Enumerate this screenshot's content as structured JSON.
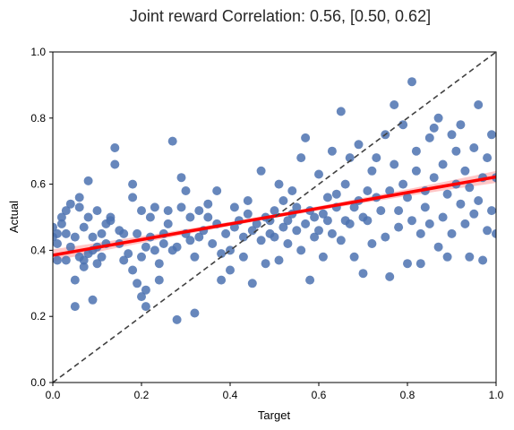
{
  "chart_data": {
    "type": "scatter",
    "title": "Joint reward Correlation: 0.56, [0.50, 0.62]",
    "xlabel": "Target",
    "ylabel": "Actual",
    "xlim": [
      0.0,
      1.0
    ],
    "ylim": [
      0.0,
      1.0
    ],
    "x_ticks": [
      "0.0",
      "0.2",
      "0.4",
      "0.6",
      "0.8",
      "1.0"
    ],
    "y_ticks": [
      "0.0",
      "0.2",
      "0.4",
      "0.6",
      "0.8",
      "1.0"
    ],
    "grid": false,
    "legend": "none",
    "colors": {
      "points": "#4c72b0",
      "regression": "#ff0000",
      "confidence_band": "#ff9999",
      "identity": "#404040"
    },
    "regression": {
      "intercept": 0.385,
      "slope": 0.237,
      "x_range": [
        0.0,
        1.0
      ]
    },
    "identity_line": {
      "x": [
        0.0,
        1.0
      ],
      "y": [
        0.0,
        1.0
      ],
      "style": "dashed"
    },
    "points": [
      [
        0.0,
        0.44
      ],
      [
        0.0,
        0.47
      ],
      [
        0.01,
        0.45
      ],
      [
        0.01,
        0.37
      ],
      [
        0.01,
        0.42
      ],
      [
        0.02,
        0.48
      ],
      [
        0.02,
        0.5
      ],
      [
        0.03,
        0.37
      ],
      [
        0.03,
        0.52
      ],
      [
        0.03,
        0.45
      ],
      [
        0.04,
        0.41
      ],
      [
        0.04,
        0.54
      ],
      [
        0.05,
        0.23
      ],
      [
        0.05,
        0.31
      ],
      [
        0.05,
        0.44
      ],
      [
        0.06,
        0.56
      ],
      [
        0.06,
        0.38
      ],
      [
        0.06,
        0.53
      ],
      [
        0.07,
        0.35
      ],
      [
        0.07,
        0.37
      ],
      [
        0.07,
        0.47
      ],
      [
        0.08,
        0.39
      ],
      [
        0.08,
        0.61
      ],
      [
        0.08,
        0.5
      ],
      [
        0.09,
        0.25
      ],
      [
        0.09,
        0.44
      ],
      [
        0.09,
        0.4
      ],
      [
        0.1,
        0.41
      ],
      [
        0.1,
        0.36
      ],
      [
        0.1,
        0.52
      ],
      [
        0.11,
        0.38
      ],
      [
        0.11,
        0.45
      ],
      [
        0.12,
        0.48
      ],
      [
        0.12,
        0.42
      ],
      [
        0.13,
        0.49
      ],
      [
        0.13,
        0.5
      ],
      [
        0.14,
        0.66
      ],
      [
        0.14,
        0.71
      ],
      [
        0.15,
        0.46
      ],
      [
        0.15,
        0.42
      ],
      [
        0.16,
        0.37
      ],
      [
        0.16,
        0.45
      ],
      [
        0.17,
        0.39
      ],
      [
        0.18,
        0.56
      ],
      [
        0.18,
        0.6
      ],
      [
        0.18,
        0.34
      ],
      [
        0.19,
        0.45
      ],
      [
        0.19,
        0.3
      ],
      [
        0.2,
        0.52
      ],
      [
        0.2,
        0.38
      ],
      [
        0.2,
        0.26
      ],
      [
        0.21,
        0.28
      ],
      [
        0.21,
        0.41
      ],
      [
        0.21,
        0.23
      ],
      [
        0.22,
        0.44
      ],
      [
        0.22,
        0.5
      ],
      [
        0.23,
        0.4
      ],
      [
        0.23,
        0.53
      ],
      [
        0.24,
        0.31
      ],
      [
        0.24,
        0.36
      ],
      [
        0.25,
        0.45
      ],
      [
        0.25,
        0.42
      ],
      [
        0.26,
        0.48
      ],
      [
        0.26,
        0.52
      ],
      [
        0.27,
        0.4
      ],
      [
        0.27,
        0.73
      ],
      [
        0.28,
        0.19
      ],
      [
        0.28,
        0.41
      ],
      [
        0.29,
        0.53
      ],
      [
        0.29,
        0.62
      ],
      [
        0.3,
        0.45
      ],
      [
        0.3,
        0.58
      ],
      [
        0.31,
        0.43
      ],
      [
        0.31,
        0.5
      ],
      [
        0.32,
        0.38
      ],
      [
        0.32,
        0.21
      ],
      [
        0.33,
        0.52
      ],
      [
        0.33,
        0.44
      ],
      [
        0.34,
        0.46
      ],
      [
        0.35,
        0.5
      ],
      [
        0.35,
        0.54
      ],
      [
        0.36,
        0.42
      ],
      [
        0.37,
        0.58
      ],
      [
        0.37,
        0.48
      ],
      [
        0.38,
        0.39
      ],
      [
        0.38,
        0.31
      ],
      [
        0.39,
        0.45
      ],
      [
        0.4,
        0.4
      ],
      [
        0.4,
        0.34
      ],
      [
        0.41,
        0.53
      ],
      [
        0.41,
        0.47
      ],
      [
        0.42,
        0.49
      ],
      [
        0.43,
        0.44
      ],
      [
        0.43,
        0.38
      ],
      [
        0.44,
        0.51
      ],
      [
        0.44,
        0.55
      ],
      [
        0.45,
        0.46
      ],
      [
        0.45,
        0.3
      ],
      [
        0.46,
        0.48
      ],
      [
        0.47,
        0.43
      ],
      [
        0.47,
        0.64
      ],
      [
        0.48,
        0.5
      ],
      [
        0.48,
        0.36
      ],
      [
        0.49,
        0.45
      ],
      [
        0.49,
        0.49
      ],
      [
        0.5,
        0.52
      ],
      [
        0.5,
        0.44
      ],
      [
        0.51,
        0.6
      ],
      [
        0.51,
        0.37
      ],
      [
        0.52,
        0.55
      ],
      [
        0.52,
        0.47
      ],
      [
        0.53,
        0.49
      ],
      [
        0.53,
        0.42
      ],
      [
        0.54,
        0.51
      ],
      [
        0.54,
        0.58
      ],
      [
        0.55,
        0.46
      ],
      [
        0.55,
        0.53
      ],
      [
        0.56,
        0.68
      ],
      [
        0.56,
        0.4
      ],
      [
        0.57,
        0.48
      ],
      [
        0.57,
        0.74
      ],
      [
        0.58,
        0.52
      ],
      [
        0.58,
        0.31
      ],
      [
        0.59,
        0.44
      ],
      [
        0.59,
        0.5
      ],
      [
        0.6,
        0.63
      ],
      [
        0.6,
        0.46
      ],
      [
        0.61,
        0.51
      ],
      [
        0.61,
        0.38
      ],
      [
        0.62,
        0.56
      ],
      [
        0.62,
        0.49
      ],
      [
        0.63,
        0.45
      ],
      [
        0.63,
        0.7
      ],
      [
        0.64,
        0.53
      ],
      [
        0.64,
        0.57
      ],
      [
        0.65,
        0.82
      ],
      [
        0.65,
        0.43
      ],
      [
        0.66,
        0.49
      ],
      [
        0.66,
        0.6
      ],
      [
        0.67,
        0.48
      ],
      [
        0.67,
        0.68
      ],
      [
        0.68,
        0.53
      ],
      [
        0.68,
        0.38
      ],
      [
        0.69,
        0.72
      ],
      [
        0.69,
        0.55
      ],
      [
        0.7,
        0.5
      ],
      [
        0.7,
        0.33
      ],
      [
        0.71,
        0.58
      ],
      [
        0.71,
        0.49
      ],
      [
        0.72,
        0.64
      ],
      [
        0.72,
        0.42
      ],
      [
        0.73,
        0.56
      ],
      [
        0.73,
        0.68
      ],
      [
        0.74,
        0.52
      ],
      [
        0.75,
        0.75
      ],
      [
        0.75,
        0.44
      ],
      [
        0.76,
        0.58
      ],
      [
        0.76,
        0.32
      ],
      [
        0.77,
        0.66
      ],
      [
        0.77,
        0.84
      ],
      [
        0.78,
        0.52
      ],
      [
        0.78,
        0.47
      ],
      [
        0.79,
        0.78
      ],
      [
        0.79,
        0.6
      ],
      [
        0.8,
        0.56
      ],
      [
        0.8,
        0.36
      ],
      [
        0.81,
        0.91
      ],
      [
        0.81,
        0.49
      ],
      [
        0.82,
        0.64
      ],
      [
        0.82,
        0.7
      ],
      [
        0.83,
        0.45
      ],
      [
        0.83,
        0.36
      ],
      [
        0.84,
        0.58
      ],
      [
        0.84,
        0.53
      ],
      [
        0.85,
        0.74
      ],
      [
        0.85,
        0.48
      ],
      [
        0.86,
        0.62
      ],
      [
        0.86,
        0.77
      ],
      [
        0.87,
        0.41
      ],
      [
        0.87,
        0.8
      ],
      [
        0.88,
        0.5
      ],
      [
        0.88,
        0.66
      ],
      [
        0.89,
        0.57
      ],
      [
        0.89,
        0.38
      ],
      [
        0.9,
        0.75
      ],
      [
        0.9,
        0.45
      ],
      [
        0.91,
        0.6
      ],
      [
        0.91,
        0.7
      ],
      [
        0.92,
        0.54
      ],
      [
        0.92,
        0.78
      ],
      [
        0.93,
        0.48
      ],
      [
        0.93,
        0.64
      ],
      [
        0.94,
        0.59
      ],
      [
        0.94,
        0.38
      ],
      [
        0.95,
        0.71
      ],
      [
        0.95,
        0.51
      ],
      [
        0.96,
        0.84
      ],
      [
        0.96,
        0.55
      ],
      [
        0.97,
        0.37
      ],
      [
        0.97,
        0.62
      ],
      [
        0.98,
        0.46
      ],
      [
        0.98,
        0.68
      ],
      [
        0.99,
        0.75
      ],
      [
        0.99,
        0.52
      ],
      [
        1.0,
        0.45
      ],
      [
        1.0,
        0.62
      ]
    ]
  }
}
